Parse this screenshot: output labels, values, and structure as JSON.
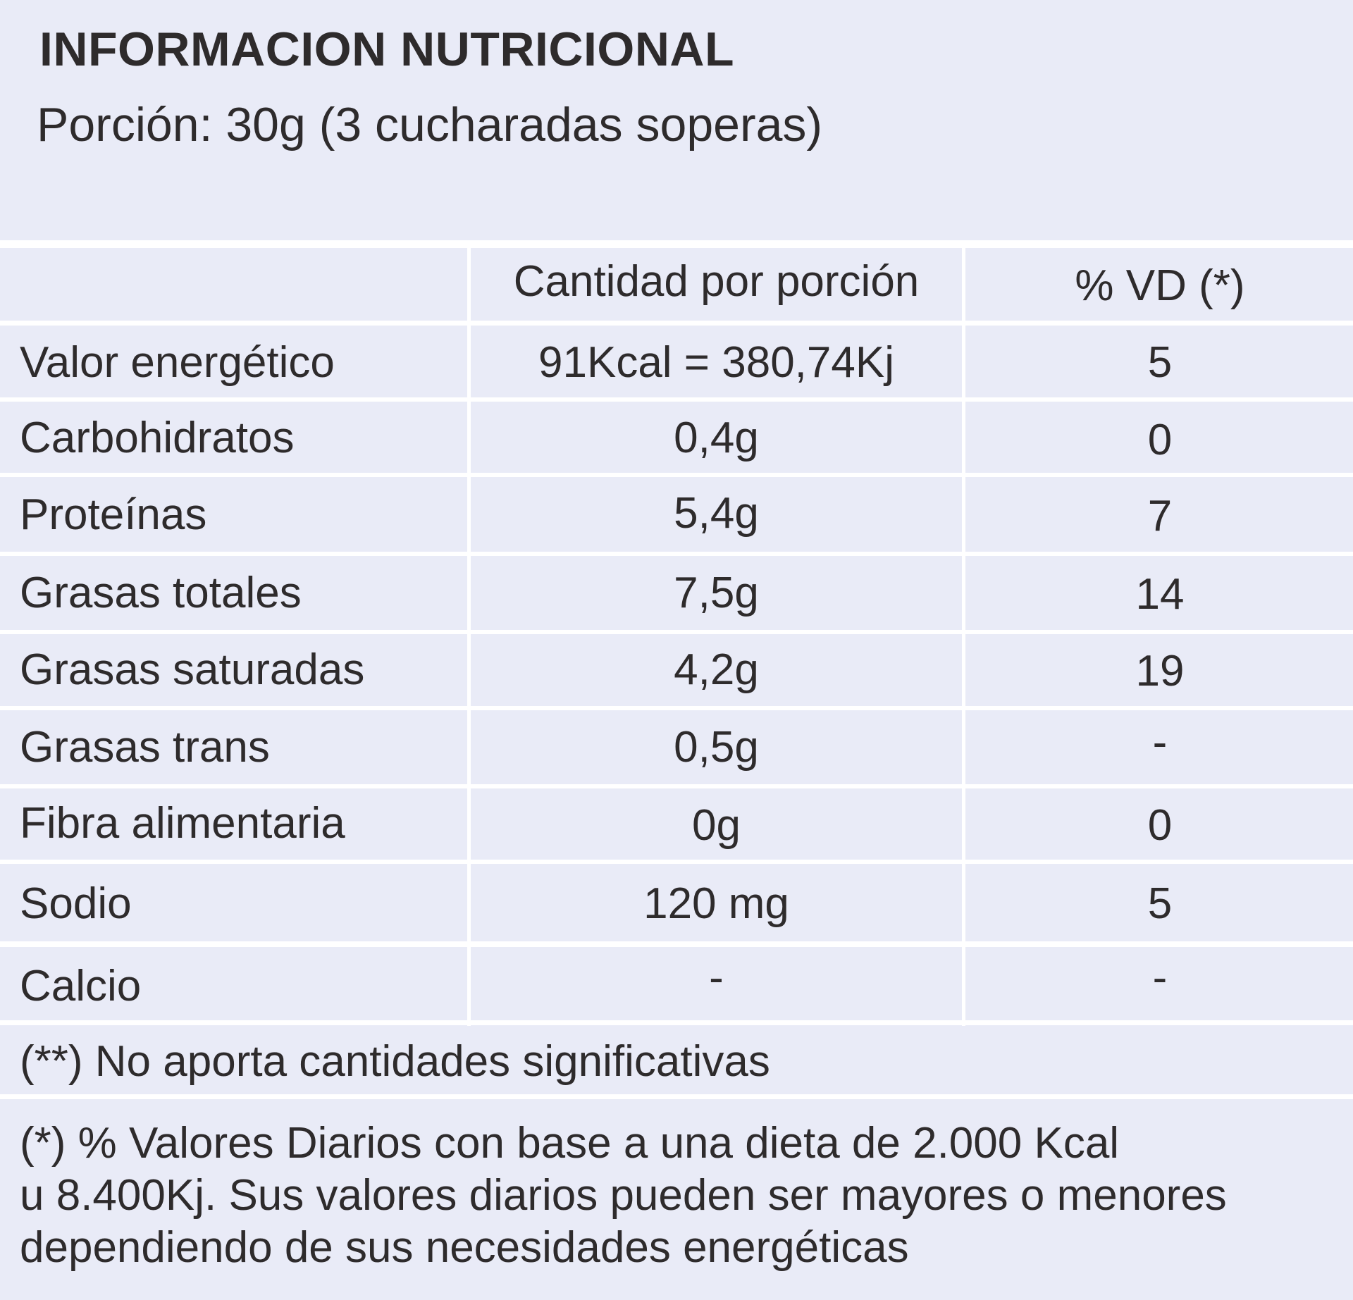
{
  "header": {
    "title": "INFORMACION NUTRICIONAL",
    "serving": "Porción: 30g (3 cucharadas soperas)"
  },
  "table": {
    "columns": [
      "",
      "Cantidad por porción",
      "% VD (*)"
    ],
    "rows": [
      {
        "nutrient": "Valor energético",
        "amount": "91Kcal = 380,74Kj",
        "vd": "5"
      },
      {
        "nutrient": "Carbohidratos",
        "amount": "0,4g",
        "vd": "0"
      },
      {
        "nutrient": "Proteínas",
        "amount": "5,4g",
        "vd": "7"
      },
      {
        "nutrient": "Grasas totales",
        "amount": "7,5g",
        "vd": "14"
      },
      {
        "nutrient": "Grasas saturadas",
        "amount": "4,2g",
        "vd": "19"
      },
      {
        "nutrient": "Grasas trans",
        "amount": "0,5g",
        "vd": "-"
      },
      {
        "nutrient": "Fibra alimentaria",
        "amount": "0g",
        "vd": "0"
      },
      {
        "nutrient": "Sodio",
        "amount": "120 mg",
        "vd": "5"
      },
      {
        "nutrient": "Calcio",
        "amount": "-",
        "vd": "-"
      }
    ]
  },
  "footnotes": {
    "no_significant": "(**) No aporta cantidades significativas",
    "daily_values_lines": [
      "(*) % Valores Diarios con base a una dieta de 2.000 Kcal",
      "u 8.400Kj. Sus valores diarios pueden ser mayores o menores",
      "dependiendo de sus necesidades energéticas"
    ]
  },
  "colors": {
    "background": "#e9ebf7",
    "grid_lines": "#ffffff",
    "text": "#2e2b2c"
  }
}
